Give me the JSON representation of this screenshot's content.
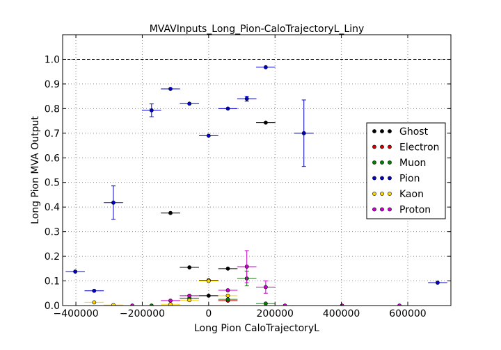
{
  "chart_data": {
    "type": "scatter",
    "title": "MVAVInputs_Long_Pion-CaloTrajectoryL_Liny",
    "xlabel": "Long Pion CaloTrajectoryL",
    "ylabel": "Long Pion MVA Output",
    "xlim": [
      -440000,
      730000
    ],
    "ylim": [
      0.0,
      1.1
    ],
    "x_ticks": [
      -400000,
      -200000,
      0,
      200000,
      400000,
      600000
    ],
    "x_tick_labels": [
      "−400000",
      "−200000",
      "0",
      "200000",
      "400000",
      "600000"
    ],
    "y_ticks": [
      0.0,
      0.1,
      0.2,
      0.3,
      0.4,
      0.5,
      0.6,
      0.7,
      0.8,
      0.9,
      1.0
    ],
    "y_tick_labels": [
      "0.0",
      "0.1",
      "0.2",
      "0.3",
      "0.4",
      "0.5",
      "0.6",
      "0.7",
      "0.8",
      "0.9",
      "1.0"
    ],
    "grid": true,
    "reference_line_y": 1.0,
    "legend_position": "right",
    "xerr_half_width": 29000,
    "series": [
      {
        "name": "Ghost",
        "color": "#000000",
        "points": [
          {
            "x": -115000,
            "y": 0.376,
            "yerr": 0
          },
          {
            "x": -58000,
            "y": 0.155,
            "yerr": 0
          },
          {
            "x": 0,
            "y": 0.04,
            "yerr": 0
          },
          {
            "x": 58000,
            "y": 0.15,
            "yerr": 0
          },
          {
            "x": 172000,
            "y": 0.743,
            "yerr": 0
          }
        ]
      },
      {
        "name": "Electron",
        "color": "#cc0000",
        "points": [
          {
            "x": 0,
            "y": 0.103,
            "yerr": 0
          },
          {
            "x": 58000,
            "y": 0.02,
            "yerr": 0
          }
        ]
      },
      {
        "name": "Muon",
        "color": "#008000",
        "points": [
          {
            "x": -172000,
            "y": 0.0,
            "yerr": 0
          },
          {
            "x": -58000,
            "y": 0.03,
            "yerr": 0
          },
          {
            "x": 58000,
            "y": 0.025,
            "yerr": 0
          },
          {
            "x": 115000,
            "y": 0.11,
            "yerr": 0.03
          },
          {
            "x": 172000,
            "y": 0.008,
            "yerr": 0
          }
        ]
      },
      {
        "name": "Pion",
        "color": "#0000cc",
        "points": [
          {
            "x": -402000,
            "y": 0.138,
            "yerr": 0
          },
          {
            "x": -345000,
            "y": 0.06,
            "yerr": 0
          },
          {
            "x": -287000,
            "y": 0.418,
            "yerr": 0.068
          },
          {
            "x": -172000,
            "y": 0.793,
            "yerr": 0.026
          },
          {
            "x": -115000,
            "y": 0.88,
            "yerr": 0
          },
          {
            "x": -58000,
            "y": 0.82,
            "yerr": 0
          },
          {
            "x": 0,
            "y": 0.69,
            "yerr": 0
          },
          {
            "x": 58000,
            "y": 0.8,
            "yerr": 0
          },
          {
            "x": 115000,
            "y": 0.84,
            "yerr": 0.01
          },
          {
            "x": 172000,
            "y": 0.968,
            "yerr": 0
          },
          {
            "x": 287000,
            "y": 0.7,
            "yerr": 0.135
          },
          {
            "x": 690000,
            "y": 0.093,
            "yerr": 0
          }
        ]
      },
      {
        "name": "Kaon",
        "color": "#ffd700",
        "points": [
          {
            "x": -345000,
            "y": 0.013,
            "yerr": 0
          },
          {
            "x": -287000,
            "y": 0.002,
            "yerr": 0
          },
          {
            "x": -115000,
            "y": 0.005,
            "yerr": 0
          },
          {
            "x": -58000,
            "y": 0.022,
            "yerr": 0
          },
          {
            "x": 0,
            "y": 0.1,
            "yerr": 0
          },
          {
            "x": 58000,
            "y": 0.04,
            "yerr": 0
          }
        ]
      },
      {
        "name": "Proton",
        "color": "#cc00cc",
        "points": [
          {
            "x": -230000,
            "y": 0.0,
            "yerr": 0
          },
          {
            "x": -115000,
            "y": 0.02,
            "yerr": 0
          },
          {
            "x": -58000,
            "y": 0.04,
            "yerr": 0
          },
          {
            "x": 58000,
            "y": 0.062,
            "yerr": 0
          },
          {
            "x": 115000,
            "y": 0.158,
            "yerr": 0.065
          },
          {
            "x": 172000,
            "y": 0.075,
            "yerr": 0.025
          },
          {
            "x": 230000,
            "y": 0.0,
            "yerr": 0
          },
          {
            "x": 402000,
            "y": 0.0,
            "yerr": 0
          },
          {
            "x": 575000,
            "y": 0.0,
            "yerr": 0
          }
        ]
      }
    ]
  }
}
